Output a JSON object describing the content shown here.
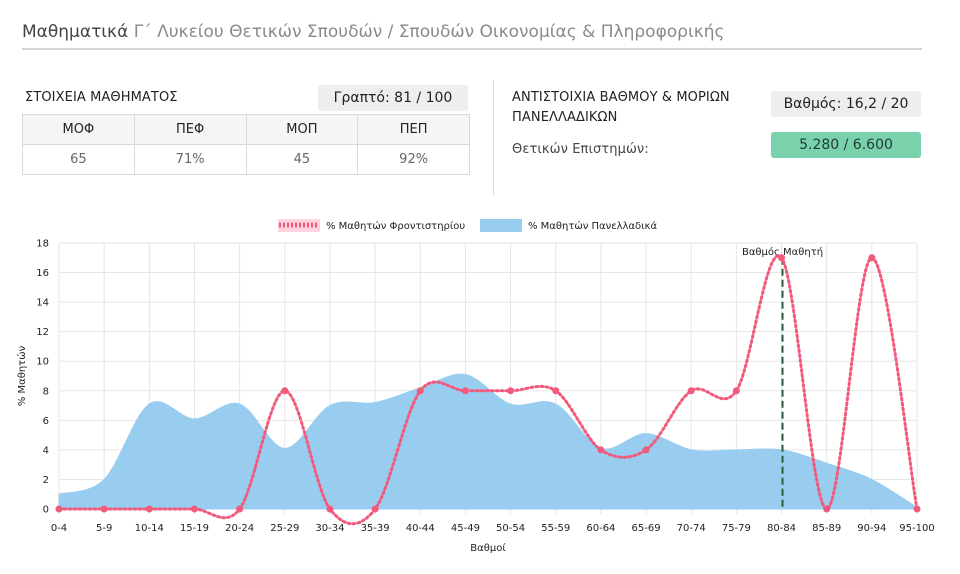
{
  "header": {
    "title_main": "Μαθηματικά",
    "title_sub": "Γ΄ Λυκείου Θετικών Σπουδών / Σπουδών Οικονομίας & Πληροφορικής"
  },
  "course_info": {
    "label": "ΣΤΟΙΧΕΙΑ ΜΑΘΗΜΑΤΟΣ",
    "written_badge": "Γραπτό: 81 / 100",
    "table": {
      "headers": [
        "ΜΟΦ",
        "ΠΕΦ",
        "ΜΟΠ",
        "ΠΕΠ"
      ],
      "values": [
        "65",
        "71%",
        "45",
        "92%"
      ]
    }
  },
  "correspondence": {
    "label": "ΑΝΤΙΣΤΟΙΧΙΑ ΒΑΘΜΟΥ & ΜΟΡΙΩΝ ΠΑΝΕΛΛΑΔΙΚΩΝ",
    "grade_badge": "Βαθμός: 16,2 / 20",
    "field_label": "Θετικών Επιστημών:",
    "points_badge": "5.280 / 6.600"
  },
  "chart_data": {
    "type": "line",
    "categories": [
      "0-4",
      "5-9",
      "10-14",
      "15-19",
      "20-24",
      "25-29",
      "30-34",
      "35-39",
      "40-44",
      "45-49",
      "50-54",
      "55-59",
      "60-64",
      "65-69",
      "70-74",
      "75-79",
      "80-84",
      "85-89",
      "90-94",
      "95-100"
    ],
    "series": [
      {
        "name": "% Μαθητών Φροντιστηρίου",
        "style": "dotted-line-with-points",
        "color": "#f25a7c",
        "values": [
          0,
          0,
          0,
          0,
          0,
          8,
          0,
          0,
          8,
          8,
          8,
          8,
          4,
          4,
          8,
          8,
          17,
          0,
          17,
          0
        ]
      },
      {
        "name": "% Μαθητών Πανελλαδικά",
        "style": "area",
        "color": "#99cdf0",
        "values": [
          1.0,
          2.0,
          7.1,
          6.1,
          7.1,
          4.1,
          7.0,
          7.2,
          8.2,
          9.1,
          7.1,
          7.1,
          4.1,
          5.1,
          4.0,
          4.0,
          4.0,
          3.1,
          2.0,
          0.1
        ]
      }
    ],
    "xlabel": "Βαθμοί",
    "ylabel": "% Μαθητών",
    "ylim": [
      0,
      18
    ],
    "yticks": [
      0,
      2,
      4,
      6,
      8,
      10,
      12,
      14,
      16,
      18
    ],
    "grid": true,
    "legend_position": "top",
    "marker": {
      "label": "Βαθμός Μαθητή",
      "category": "80-84",
      "color": "#2c5e3a"
    }
  }
}
